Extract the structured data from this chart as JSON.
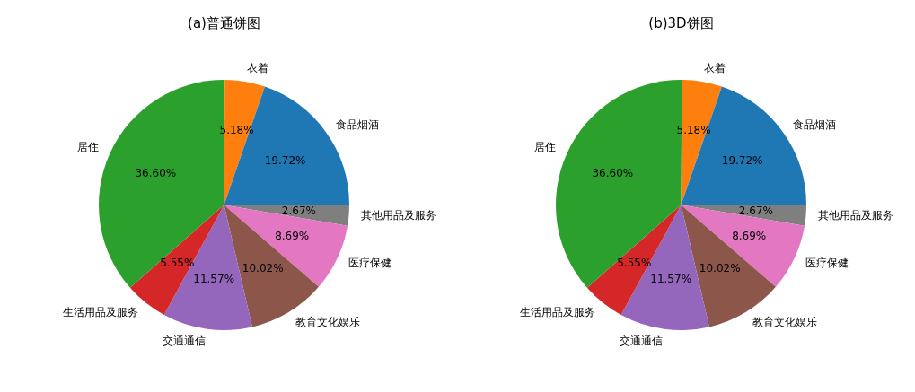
{
  "chart_data": [
    {
      "type": "pie",
      "title": "(a)普通饼图",
      "categories": [
        "食品烟酒",
        "衣着",
        "居住",
        "生活用品及服务",
        "交通通信",
        "教育文化娱乐",
        "医疗保健",
        "其他用品及服务"
      ],
      "values": [
        19.72,
        5.18,
        36.6,
        5.55,
        11.57,
        10.02,
        8.69,
        2.67
      ],
      "value_labels": [
        "19.72%",
        "5.18%",
        "36.60%",
        "5.55%",
        "11.57%",
        "10.02%",
        "8.69%",
        "2.67%"
      ],
      "colors": [
        "#1f77b4",
        "#ff7f0e",
        "#2ca02c",
        "#d62728",
        "#9467bd",
        "#8c564b",
        "#e377c2",
        "#7f7f7f"
      ],
      "legend": false
    },
    {
      "type": "pie",
      "title": "(b)3D饼图",
      "categories": [
        "食品烟酒",
        "衣着",
        "居住",
        "生活用品及服务",
        "交通通信",
        "教育文化娱乐",
        "医疗保健",
        "其他用品及服务"
      ],
      "values": [
        19.72,
        5.18,
        36.6,
        5.55,
        11.57,
        10.02,
        8.69,
        2.67
      ],
      "value_labels": [
        "19.72%",
        "5.18%",
        "36.60%",
        "5.55%",
        "11.57%",
        "10.02%",
        "8.69%",
        "2.67%"
      ],
      "colors": [
        "#1f77b4",
        "#ff7f0e",
        "#2ca02c",
        "#d62728",
        "#9467bd",
        "#8c564b",
        "#e377c2",
        "#7f7f7f"
      ],
      "legend": false
    }
  ]
}
